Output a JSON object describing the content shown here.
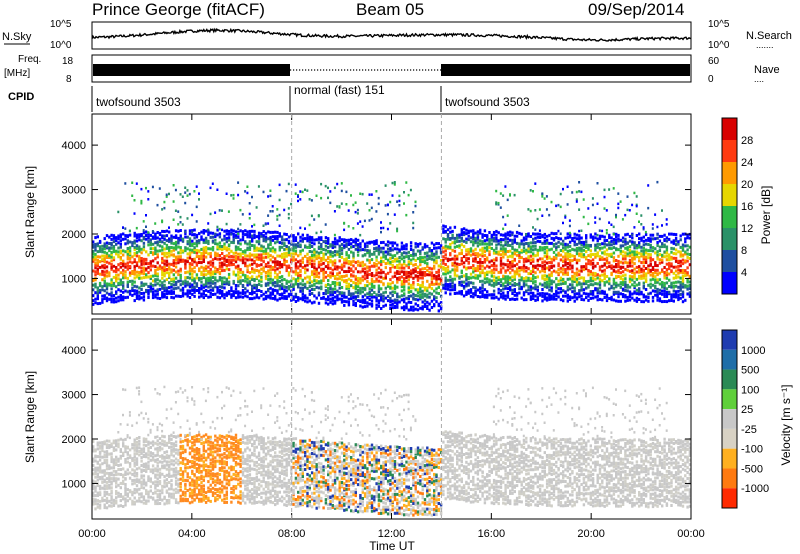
{
  "header": {
    "station": "Prince George (fitACF)",
    "beam": "Beam 05",
    "date": "09/Sep/2014"
  },
  "chart_data": [
    {
      "panel": "nsky_nsearch",
      "type": "line",
      "left_label": "N.Sky",
      "right_label": "N.Search",
      "y_ticks_left": [
        "10^5",
        "10^0"
      ],
      "y_ticks_right": [
        "10^5",
        "10^0"
      ],
      "right_legend": "......."
    },
    {
      "panel": "freq_nave",
      "type": "line",
      "left_label_1": "Freq.",
      "left_label_2": "[MHz]",
      "right_label": "Nave",
      "y_ticks_left": [
        "18",
        "8"
      ],
      "y_ticks_right": [
        "60",
        "0"
      ],
      "right_legend": "....",
      "normal_mode_span_hours": [
        8.0,
        14.0
      ]
    },
    {
      "panel": "cpid",
      "type": "table",
      "label": "CPID",
      "segments": [
        {
          "label": "twofsound 3503",
          "start_hour": 0.0,
          "end_hour": 8.0
        },
        {
          "label": "normal (fast) 151",
          "start_hour": 8.0,
          "end_hour": 14.0
        },
        {
          "label": "twofsound 3503",
          "start_hour": 14.0,
          "end_hour": 24.0
        }
      ]
    },
    {
      "panel": "power",
      "type": "heatmap",
      "ylabel": "Slant Range [km]",
      "y_ticks": [
        1000,
        2000,
        3000,
        4000
      ],
      "ylim": [
        200,
        4700
      ],
      "colorbar_label": "Power [dB]",
      "colorbar_ticks": [
        28,
        24,
        20,
        16,
        12,
        8,
        4
      ],
      "colorbar_colors": [
        "#d80000",
        "#ff3a10",
        "#ff9a00",
        "#e6d600",
        "#2fb845",
        "#2a9168",
        "#1f4fa0",
        "#0000ff"
      ]
    },
    {
      "panel": "velocity",
      "type": "heatmap",
      "ylabel": "Slant Range [km]",
      "y_ticks": [
        1000,
        2000,
        3000,
        4000
      ],
      "ylim": [
        200,
        4700
      ],
      "colorbar_label": "Velocity [m s⁻¹]",
      "colorbar_ticks": [
        "1000",
        "500",
        "100",
        "25",
        "-25",
        "-100",
        "-500",
        "-1000"
      ],
      "colorbar_colors": [
        "#1f3cb0",
        "#1f6ea8",
        "#2a8a55",
        "#5fcf3a",
        "#c8c8c8",
        "#d8d2c4",
        "#ffb020",
        "#ff7a10",
        "#ff2a00"
      ]
    }
  ],
  "x_axis": {
    "label": "Time UT",
    "ticks": [
      "00:00",
      "04:00",
      "08:00",
      "12:00",
      "16:00",
      "20:00",
      "00:00"
    ]
  }
}
